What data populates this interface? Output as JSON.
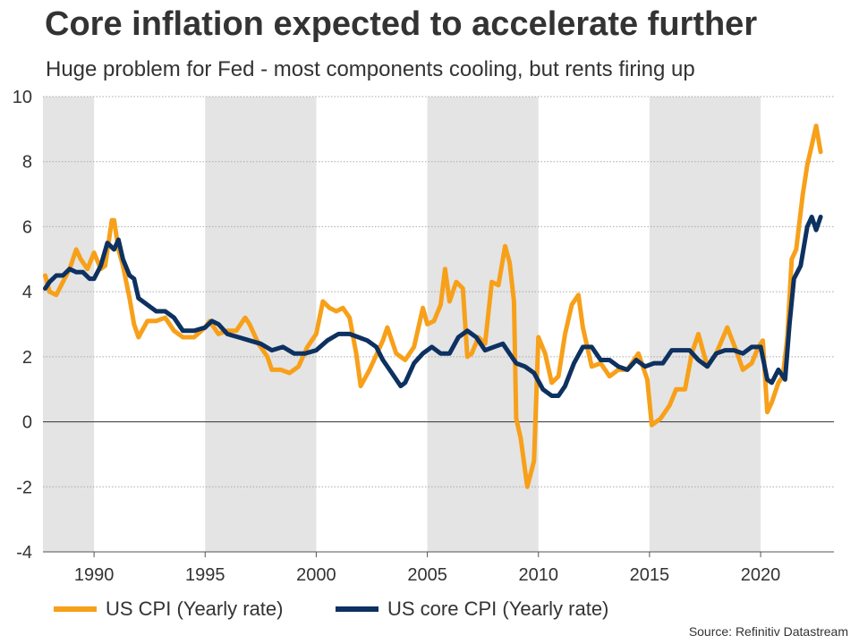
{
  "title": "Core inflation expected to accelerate further",
  "subtitle": "Huge problem for Fed - most components cooling, but rents firing up",
  "source": "Source: Refinitiv Datastream",
  "colors": {
    "cpi": "#f7a01a",
    "core": "#0d3160",
    "shade": "#e4e4e4",
    "grid": "#aaaaaa",
    "zero": "#333333"
  },
  "chart_data": {
    "type": "line",
    "xlim": [
      1987.7,
      2023.3
    ],
    "ylim": [
      -4,
      10
    ],
    "yticks": [
      -4,
      -2,
      0,
      2,
      4,
      6,
      8,
      10
    ],
    "ytick_labels": [
      "-4",
      "-2",
      "0",
      "2",
      "4",
      "6",
      "8",
      "10"
    ],
    "xticks": [
      1990,
      1995,
      2000,
      2005,
      2010,
      2015,
      2020
    ],
    "xtick_labels": [
      "1990",
      "1995",
      "2000",
      "2005",
      "2010",
      "2015",
      "2020"
    ],
    "shaded_periods": [
      [
        1987.7,
        1990
      ],
      [
        1995,
        2000
      ],
      [
        2005,
        2010
      ],
      [
        2015,
        2020
      ]
    ],
    "grid": true,
    "legend_position": "bottom",
    "series": [
      {
        "name": "US CPI (Yearly rate)",
        "color": "#f7a01a",
        "x": [
          1987.8,
          1988.0,
          1988.3,
          1988.6,
          1988.9,
          1989.2,
          1989.4,
          1989.7,
          1990.0,
          1990.3,
          1990.5,
          1990.8,
          1990.9,
          1991.1,
          1991.3,
          1991.6,
          1991.8,
          1992.0,
          1992.4,
          1992.8,
          1993.2,
          1993.6,
          1994.0,
          1994.5,
          1995.0,
          1995.2,
          1995.6,
          1996.0,
          1996.4,
          1996.8,
          1997.0,
          1997.4,
          1997.8,
          1998.0,
          1998.4,
          1998.8,
          1999.2,
          1999.6,
          2000.0,
          2000.3,
          2000.6,
          2000.9,
          2001.2,
          2001.5,
          2001.8,
          2002.0,
          2002.4,
          2002.8,
          2003.0,
          2003.2,
          2003.6,
          2004.0,
          2004.4,
          2004.8,
          2005.0,
          2005.3,
          2005.6,
          2005.8,
          2006.0,
          2006.3,
          2006.6,
          2006.8,
          2007.0,
          2007.3,
          2007.6,
          2007.9,
          2008.2,
          2008.5,
          2008.7,
          2008.9,
          2009.0,
          2009.2,
          2009.5,
          2009.8,
          2010.0,
          2010.3,
          2010.6,
          2010.9,
          2011.2,
          2011.5,
          2011.8,
          2012.0,
          2012.4,
          2012.8,
          2013.2,
          2013.6,
          2014.0,
          2014.5,
          2014.9,
          2015.1,
          2015.5,
          2015.9,
          2016.2,
          2016.6,
          2016.9,
          2017.2,
          2017.6,
          2018.0,
          2018.5,
          2018.9,
          2019.2,
          2019.6,
          2019.9,
          2020.1,
          2020.3,
          2020.5,
          2020.8,
          2021.0,
          2021.2,
          2021.4,
          2021.6,
          2021.9,
          2022.1,
          2022.3,
          2022.5,
          2022.7
        ],
        "y": [
          4.5,
          4.0,
          3.9,
          4.3,
          4.7,
          5.3,
          5.0,
          4.7,
          5.2,
          4.7,
          4.8,
          6.2,
          6.2,
          5.3,
          4.8,
          3.8,
          3.0,
          2.6,
          3.1,
          3.1,
          3.2,
          2.8,
          2.6,
          2.6,
          2.9,
          3.1,
          2.7,
          2.8,
          2.8,
          3.2,
          3.0,
          2.4,
          2.0,
          1.6,
          1.6,
          1.5,
          1.7,
          2.3,
          2.7,
          3.7,
          3.5,
          3.4,
          3.5,
          3.2,
          2.1,
          1.1,
          1.6,
          2.2,
          2.5,
          2.9,
          2.1,
          1.9,
          2.3,
          3.5,
          3.0,
          3.1,
          3.6,
          4.7,
          3.7,
          4.3,
          4.1,
          2.0,
          2.1,
          2.6,
          2.4,
          4.3,
          4.2,
          5.4,
          4.9,
          3.7,
          0.1,
          -0.5,
          -2.0,
          -1.2,
          2.6,
          2.1,
          1.2,
          1.4,
          2.7,
          3.6,
          3.9,
          2.9,
          1.7,
          1.8,
          1.4,
          1.6,
          1.6,
          2.1,
          1.3,
          -0.1,
          0.1,
          0.5,
          1.0,
          1.0,
          2.1,
          2.7,
          1.7,
          2.1,
          2.9,
          2.2,
          1.6,
          1.8,
          2.3,
          2.5,
          0.3,
          0.6,
          1.2,
          1.4,
          2.6,
          5.0,
          5.3,
          7.0,
          7.9,
          8.5,
          9.1,
          8.3
        ]
      },
      {
        "name": "US core CPI (Yearly rate)",
        "color": "#0d3160",
        "x": [
          1987.8,
          1988.0,
          1988.3,
          1988.6,
          1988.9,
          1989.2,
          1989.5,
          1989.8,
          1990.0,
          1990.3,
          1990.6,
          1990.9,
          1991.1,
          1991.3,
          1991.6,
          1991.8,
          1992.0,
          1992.4,
          1992.8,
          1993.2,
          1993.6,
          1994.0,
          1994.5,
          1995.0,
          1995.3,
          1995.6,
          1996.0,
          1996.5,
          1997.0,
          1997.5,
          1998.0,
          1998.5,
          1999.0,
          1999.5,
          2000.0,
          2000.5,
          2001.0,
          2001.5,
          2001.9,
          2002.3,
          2002.7,
          2003.0,
          2003.4,
          2003.8,
          2004.0,
          2004.4,
          2004.8,
          2005.2,
          2005.6,
          2006.0,
          2006.4,
          2006.8,
          2007.2,
          2007.6,
          2008.0,
          2008.4,
          2008.8,
          2009.0,
          2009.4,
          2009.8,
          2010.2,
          2010.6,
          2010.9,
          2011.2,
          2011.6,
          2012.0,
          2012.4,
          2012.8,
          2013.2,
          2013.6,
          2014.0,
          2014.4,
          2014.8,
          2015.2,
          2015.6,
          2016.0,
          2016.4,
          2016.8,
          2017.2,
          2017.6,
          2018.0,
          2018.4,
          2018.8,
          2019.2,
          2019.6,
          2020.0,
          2020.3,
          2020.5,
          2020.8,
          2021.1,
          2021.3,
          2021.5,
          2021.8,
          2022.1,
          2022.3,
          2022.5,
          2022.7
        ],
        "y": [
          4.1,
          4.3,
          4.5,
          4.5,
          4.7,
          4.6,
          4.6,
          4.4,
          4.4,
          4.8,
          5.5,
          5.3,
          5.6,
          5.0,
          4.5,
          4.4,
          3.8,
          3.6,
          3.4,
          3.4,
          3.2,
          2.8,
          2.8,
          2.9,
          3.1,
          3.0,
          2.7,
          2.6,
          2.5,
          2.4,
          2.2,
          2.3,
          2.1,
          2.1,
          2.2,
          2.5,
          2.7,
          2.7,
          2.6,
          2.5,
          2.3,
          1.9,
          1.5,
          1.1,
          1.2,
          1.8,
          2.1,
          2.3,
          2.1,
          2.1,
          2.6,
          2.8,
          2.6,
          2.2,
          2.3,
          2.4,
          2.0,
          1.8,
          1.7,
          1.5,
          1.0,
          0.8,
          0.8,
          1.1,
          1.8,
          2.3,
          2.3,
          1.9,
          1.9,
          1.7,
          1.6,
          1.9,
          1.7,
          1.8,
          1.8,
          2.2,
          2.2,
          2.2,
          1.9,
          1.7,
          2.1,
          2.2,
          2.2,
          2.1,
          2.3,
          2.3,
          1.3,
          1.2,
          1.6,
          1.3,
          3.0,
          4.4,
          4.8,
          6.0,
          6.3,
          5.9,
          6.3
        ]
      }
    ]
  }
}
